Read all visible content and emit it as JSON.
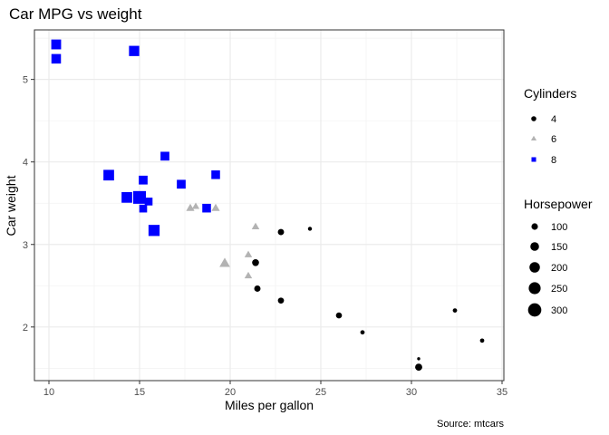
{
  "chart_data": {
    "type": "scatter",
    "title": "Car MPG vs weight",
    "xlabel": "Miles per gallon",
    "ylabel": "Car weight",
    "caption": "Source: mtcars",
    "xlim": [
      9.2,
      35.1
    ],
    "ylim": [
      1.35,
      5.6
    ],
    "x_ticks": [
      10,
      15,
      20,
      25,
      30,
      35
    ],
    "y_ticks": [
      2,
      3,
      4,
      5
    ],
    "grid": true,
    "legend_placement": "right",
    "shape_legend": {
      "title": "Cylinders",
      "entries": [
        {
          "label": "4",
          "shape": "circle",
          "color": "#000000"
        },
        {
          "label": "6",
          "shape": "triangle",
          "color": "#B3B3B3"
        },
        {
          "label": "8",
          "shape": "square",
          "color": "#0000FF"
        }
      ]
    },
    "size_legend": {
      "title": "Horsepower",
      "entries": [
        "100",
        "150",
        "200",
        "250",
        "300"
      ],
      "values": [
        100,
        150,
        200,
        250,
        300
      ]
    },
    "hp_range": [
      52,
      335
    ],
    "points": [
      {
        "x": 21.0,
        "y": 2.62,
        "cyl": 6,
        "hp": 110
      },
      {
        "x": 21.0,
        "y": 2.875,
        "cyl": 6,
        "hp": 110
      },
      {
        "x": 22.8,
        "y": 2.32,
        "cyl": 4,
        "hp": 93
      },
      {
        "x": 21.4,
        "y": 3.215,
        "cyl": 6,
        "hp": 110
      },
      {
        "x": 18.7,
        "y": 3.44,
        "cyl": 8,
        "hp": 175
      },
      {
        "x": 18.1,
        "y": 3.46,
        "cyl": 6,
        "hp": 105
      },
      {
        "x": 14.3,
        "y": 3.57,
        "cyl": 8,
        "hp": 245
      },
      {
        "x": 24.4,
        "y": 3.19,
        "cyl": 4,
        "hp": 62
      },
      {
        "x": 22.8,
        "y": 3.15,
        "cyl": 4,
        "hp": 95
      },
      {
        "x": 19.2,
        "y": 3.44,
        "cyl": 6,
        "hp": 123
      },
      {
        "x": 17.8,
        "y": 3.44,
        "cyl": 6,
        "hp": 123
      },
      {
        "x": 16.4,
        "y": 4.07,
        "cyl": 8,
        "hp": 180
      },
      {
        "x": 17.3,
        "y": 3.73,
        "cyl": 8,
        "hp": 180
      },
      {
        "x": 15.2,
        "y": 3.78,
        "cyl": 8,
        "hp": 180
      },
      {
        "x": 10.4,
        "y": 5.25,
        "cyl": 8,
        "hp": 205
      },
      {
        "x": 10.4,
        "y": 5.424,
        "cyl": 8,
        "hp": 215
      },
      {
        "x": 14.7,
        "y": 5.345,
        "cyl": 8,
        "hp": 230
      },
      {
        "x": 32.4,
        "y": 2.2,
        "cyl": 4,
        "hp": 66
      },
      {
        "x": 30.4,
        "y": 1.615,
        "cyl": 4,
        "hp": 52
      },
      {
        "x": 33.9,
        "y": 1.835,
        "cyl": 4,
        "hp": 65
      },
      {
        "x": 21.5,
        "y": 2.465,
        "cyl": 4,
        "hp": 97
      },
      {
        "x": 15.5,
        "y": 3.52,
        "cyl": 8,
        "hp": 150
      },
      {
        "x": 15.2,
        "y": 3.435,
        "cyl": 8,
        "hp": 150
      },
      {
        "x": 13.3,
        "y": 3.84,
        "cyl": 8,
        "hp": 245
      },
      {
        "x": 19.2,
        "y": 3.845,
        "cyl": 8,
        "hp": 175
      },
      {
        "x": 27.3,
        "y": 1.935,
        "cyl": 4,
        "hp": 66
      },
      {
        "x": 26.0,
        "y": 2.14,
        "cyl": 4,
        "hp": 91
      },
      {
        "x": 30.4,
        "y": 1.513,
        "cyl": 4,
        "hp": 113
      },
      {
        "x": 15.8,
        "y": 3.17,
        "cyl": 8,
        "hp": 264
      },
      {
        "x": 19.7,
        "y": 2.77,
        "cyl": 6,
        "hp": 175
      },
      {
        "x": 15.0,
        "y": 3.57,
        "cyl": 8,
        "hp": 335
      },
      {
        "x": 21.4,
        "y": 2.78,
        "cyl": 4,
        "hp": 109
      }
    ]
  }
}
